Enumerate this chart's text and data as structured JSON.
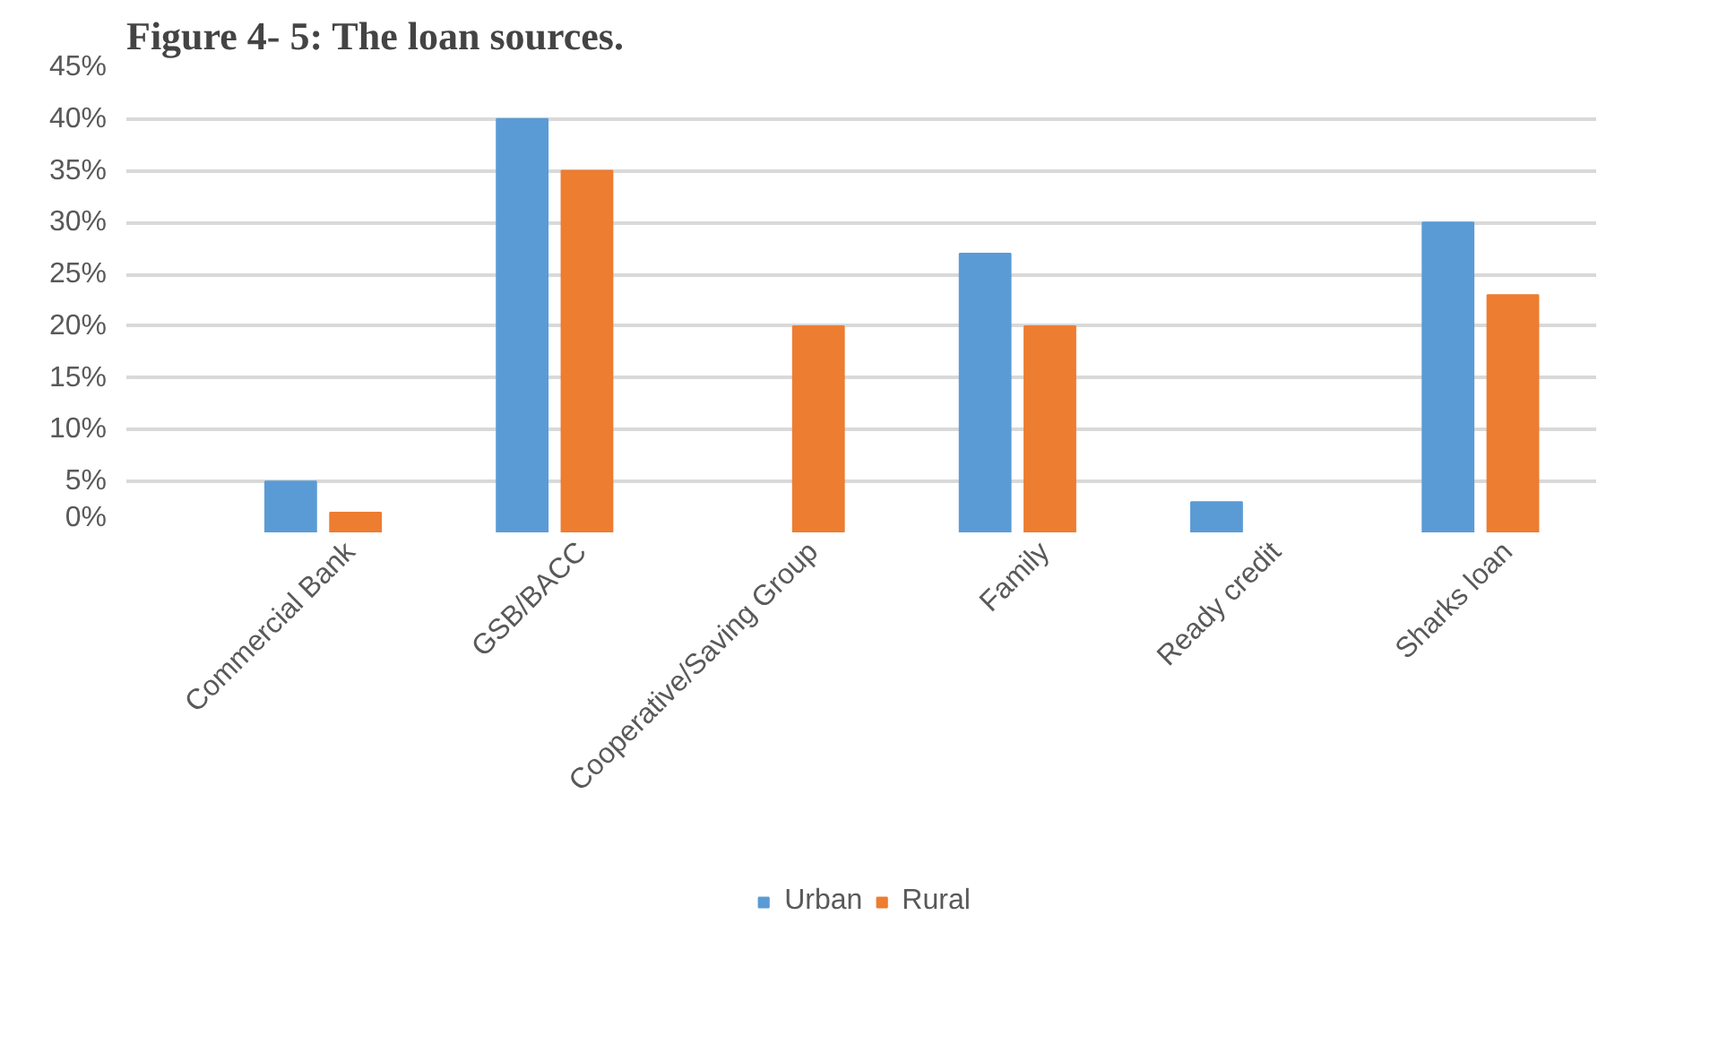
{
  "chart_data": {
    "type": "bar",
    "title": "Figure 4- 5: The loan sources.",
    "categories": [
      "Commercial Bank",
      "GSB/BACC",
      "Cooperative/Saving Group",
      "Family",
      "Ready credit",
      "Sharks loan"
    ],
    "series": [
      {
        "name": "Urban",
        "color": "#5b9bd5",
        "values": [
          5,
          40,
          null,
          27,
          3,
          30
        ]
      },
      {
        "name": "Rural",
        "color": "#ed7d31",
        "values": [
          2,
          35,
          20,
          20,
          null,
          23
        ]
      }
    ],
    "ylim": [
      0,
      45
    ],
    "yticks": [
      {
        "value": 0,
        "label": "0%"
      },
      {
        "value": 5,
        "label": "5%"
      },
      {
        "value": 10,
        "label": "10%"
      },
      {
        "value": 15,
        "label": "15%"
      },
      {
        "value": 20,
        "label": "20%"
      },
      {
        "value": 25,
        "label": "25%"
      },
      {
        "value": 30,
        "label": "30%"
      },
      {
        "value": 35,
        "label": "35%"
      },
      {
        "value": 40,
        "label": "40%"
      },
      {
        "value": 45,
        "label": "45%"
      }
    ],
    "grid": "y",
    "legend": "bottom"
  }
}
